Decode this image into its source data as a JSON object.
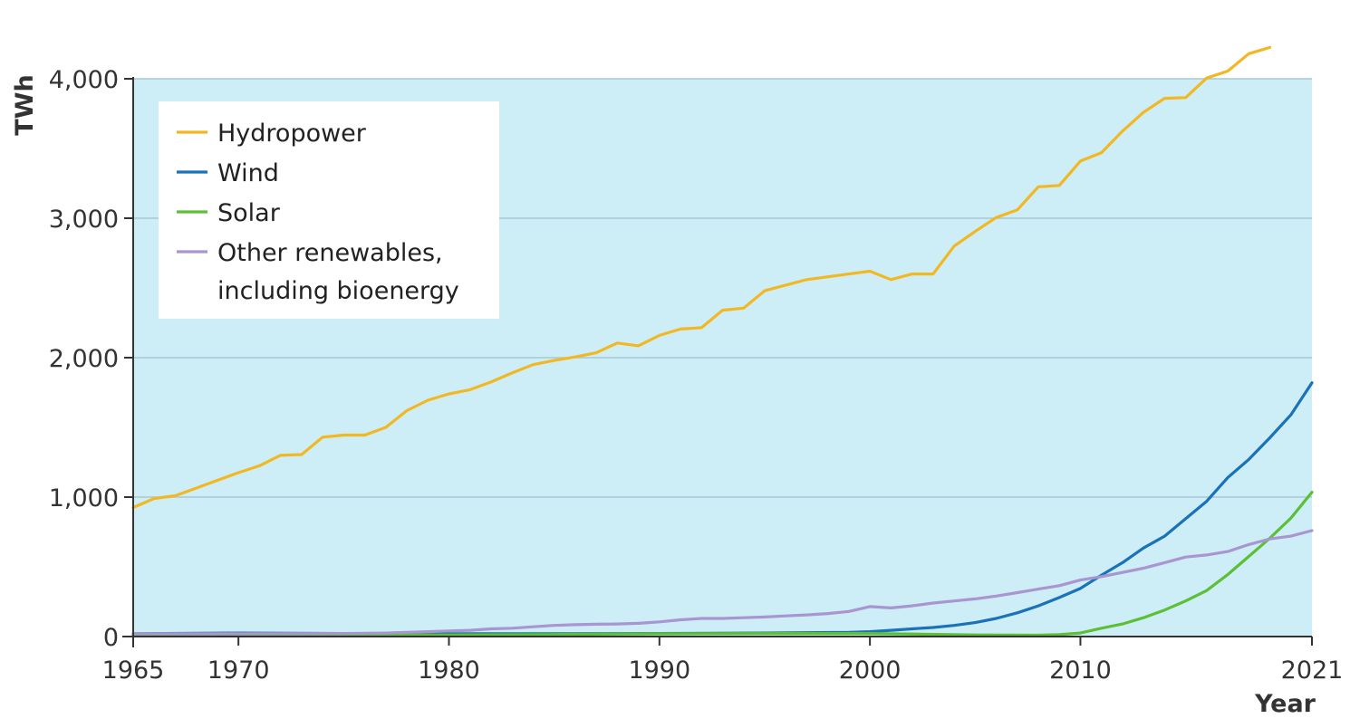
{
  "chart_data": {
    "type": "line",
    "title": "",
    "xlabel": "Year",
    "ylabel": "TWh",
    "xlim": [
      1965,
      2021
    ],
    "ylim": [
      0,
      4000
    ],
    "x_ticks": [
      1965,
      1970,
      1980,
      1990,
      2000,
      2010,
      2021
    ],
    "y_ticks": [
      {
        "value": 0,
        "label": "0"
      },
      {
        "value": 1000,
        "label": "1,000"
      },
      {
        "value": 2000,
        "label": "2,000"
      },
      {
        "value": 3000,
        "label": "3,000"
      },
      {
        "value": 4000,
        "label": "4,000"
      }
    ],
    "grid": true,
    "legend_position": "top-left",
    "colors": {
      "plot_background": "#cdeef7",
      "gridline": "#a9c7d3",
      "axis": "#333333"
    },
    "series": [
      {
        "name": "Hydropower",
        "color": "#f2b824",
        "x": [
          1965,
          1966,
          1967,
          1968,
          1969,
          1970,
          1971,
          1972,
          1973,
          1974,
          1975,
          1976,
          1977,
          1978,
          1979,
          1980,
          1981,
          1982,
          1983,
          1984,
          1985,
          1986,
          1987,
          1988,
          1989,
          1990,
          1991,
          1992,
          1993,
          1994,
          1995,
          1996,
          1997,
          1998,
          1999,
          2000,
          2001,
          2002,
          2003,
          2004,
          2005,
          2006,
          2007,
          2008,
          2009,
          2010,
          2011,
          2012,
          2013,
          2014,
          2015,
          2016,
          2017,
          2018,
          2019
        ],
        "values": [
          925,
          990,
          1010,
          1065,
          1120,
          1175,
          1225,
          1300,
          1305,
          1430,
          1445,
          1445,
          1500,
          1620,
          1695,
          1740,
          1770,
          1825,
          1890,
          1950,
          1980,
          2005,
          2035,
          2105,
          2085,
          2160,
          2205,
          2215,
          2340,
          2355,
          2480,
          2520,
          2560,
          2580,
          2600,
          2620,
          2560,
          2600,
          2600,
          2800,
          2905,
          3005,
          3060,
          3225,
          3235,
          3410,
          3470,
          3625,
          3760,
          3860,
          3865,
          4005,
          4055,
          4180,
          4225
        ]
      },
      {
        "name": "Wind",
        "color": "#1a72b8",
        "x": [
          1965,
          1970,
          1975,
          1980,
          1985,
          1990,
          1995,
          1999,
          2000,
          2001,
          2002,
          2003,
          2004,
          2005,
          2006,
          2007,
          2008,
          2009,
          2010,
          2011,
          2012,
          2013,
          2014,
          2015,
          2016,
          2017,
          2018,
          2019,
          2020,
          2021
        ],
        "values": [
          20,
          25,
          22,
          20,
          20,
          22,
          25,
          30,
          35,
          45,
          55,
          65,
          80,
          100,
          130,
          170,
          220,
          280,
          345,
          440,
          530,
          635,
          720,
          845,
          970,
          1140,
          1270,
          1425,
          1590,
          1820
        ]
      },
      {
        "name": "Solar",
        "color": "#5cbf36",
        "x": [
          1965,
          1970,
          1975,
          1980,
          1985,
          1990,
          1995,
          2000,
          2005,
          2008,
          2009,
          2010,
          2011,
          2012,
          2013,
          2014,
          2015,
          2016,
          2017,
          2018,
          2019,
          2020,
          2021
        ],
        "values": [
          10,
          10,
          10,
          12,
          15,
          20,
          22,
          22,
          12,
          10,
          14,
          25,
          60,
          90,
          135,
          190,
          255,
          330,
          445,
          575,
          705,
          850,
          1035
        ]
      },
      {
        "name": "Other renewables, including bioenergy",
        "color": "#a995d2",
        "x": [
          1965,
          1970,
          1975,
          1977,
          1978,
          1979,
          1980,
          1981,
          1982,
          1983,
          1984,
          1985,
          1986,
          1987,
          1988,
          1989,
          1990,
          1991,
          1992,
          1993,
          1994,
          1995,
          1996,
          1997,
          1998,
          1999,
          2000,
          2001,
          2002,
          2003,
          2004,
          2005,
          2006,
          2007,
          2008,
          2009,
          2010,
          2011,
          2012,
          2013,
          2014,
          2015,
          2016,
          2017,
          2018,
          2019,
          2020,
          2021
        ],
        "values": [
          20,
          20,
          22,
          25,
          30,
          35,
          40,
          45,
          55,
          60,
          70,
          80,
          85,
          88,
          90,
          95,
          105,
          120,
          130,
          130,
          135,
          140,
          148,
          155,
          165,
          180,
          215,
          205,
          220,
          240,
          255,
          270,
          290,
          315,
          340,
          365,
          405,
          430,
          460,
          490,
          530,
          570,
          585,
          610,
          660,
          700,
          720,
          760
        ]
      }
    ],
    "legend": [
      {
        "lines": [
          "Hydropower"
        ]
      },
      {
        "lines": [
          "Wind"
        ]
      },
      {
        "lines": [
          "Solar"
        ]
      },
      {
        "lines": [
          "Other renewables,",
          "including bioenergy"
        ]
      }
    ]
  }
}
